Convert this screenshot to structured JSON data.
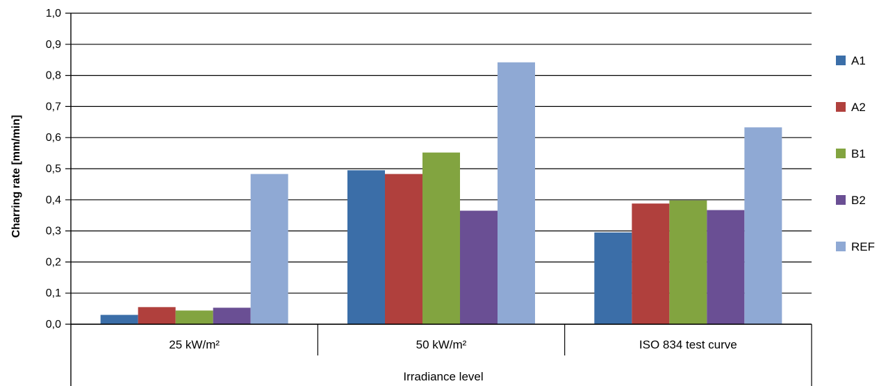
{
  "chart_data": {
    "type": "bar",
    "title": "",
    "xlabel": "Irradiance level",
    "ylabel": "Charring rate [mm/min]",
    "categories": [
      "25 kW/m²",
      "50 kW/m²",
      "ISO 834 test curve"
    ],
    "ylim": [
      0,
      1.0
    ],
    "yticks": [
      "0,0",
      "0,1",
      "0,2",
      "0,3",
      "0,4",
      "0,5",
      "0,6",
      "0,7",
      "0,8",
      "0,9",
      "1,0"
    ],
    "grid": true,
    "legend_position": "right",
    "series": [
      {
        "name": "A1",
        "color": "#3B6EA8",
        "values": [
          0.03,
          0.495,
          0.295
        ]
      },
      {
        "name": "A2",
        "color": "#B0403D",
        "values": [
          0.055,
          0.483,
          0.388
        ]
      },
      {
        "name": "B1",
        "color": "#82A440",
        "values": [
          0.044,
          0.552,
          0.398
        ]
      },
      {
        "name": "B2",
        "color": "#6A4F94",
        "values": [
          0.053,
          0.365,
          0.367
        ]
      },
      {
        "name": "REF",
        "color": "#8FA9D4",
        "values": [
          0.483,
          0.842,
          0.633
        ]
      }
    ]
  }
}
